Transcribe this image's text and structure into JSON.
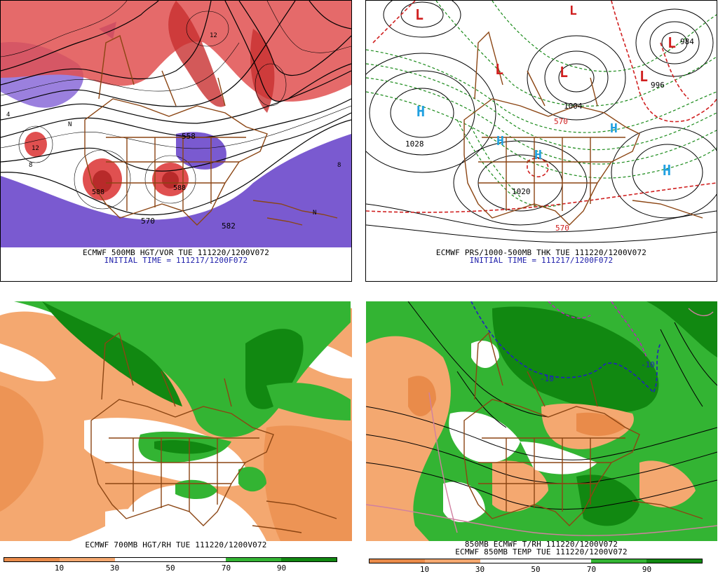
{
  "panels": [
    {
      "id": "hgt-vor",
      "caption": "ECMWF 500MB HGT/VOR TUE 111220/1200V072",
      "subcaption": "INITIAL TIME = 111217/1200F072",
      "labels": [
        "570",
        "582",
        "558",
        "588",
        "588",
        "N",
        "N",
        "4",
        "8",
        "12",
        "8",
        "12"
      ]
    },
    {
      "id": "prs-thk",
      "caption": "ECMWF PRS/1000-500MB THK TUE 111220/1200V072",
      "subcaption": "INITIAL TIME = 111217/1200F072",
      "labels": [
        "H",
        "H",
        "H",
        "H",
        "H",
        "L",
        "L",
        "L",
        "L",
        "L",
        "L",
        "1028",
        "1020",
        "1004",
        "570",
        "570",
        "984",
        "996"
      ]
    },
    {
      "id": "hgt-rh",
      "caption": "ECMWF 700MB HGT/RH TUE 111220/1200V072",
      "colorbar": {
        "ticks": [
          "10",
          "30",
          "50",
          "70",
          "90"
        ]
      }
    },
    {
      "id": "t-rh",
      "caption": "850MB ECMWF T/RH 111220/1200V072",
      "subcaption": "ECMWF 850MB TEMP TUE 111220/1200V072",
      "labels": [
        "-10",
        "-10"
      ],
      "colorbar": {
        "ticks": [
          "10",
          "30",
          "50",
          "70",
          "90"
        ]
      }
    }
  ],
  "colors": {
    "rh_dry_dark": "#e98b4a",
    "rh_dry": "#f4a870",
    "rh_moist": "#33b433",
    "rh_wet": "#118811",
    "vor_pos": "#e05050",
    "vor_neg": "#7a5ad0",
    "border": "#8b4513",
    "low": "#d02020",
    "high": "#20a0e0"
  }
}
